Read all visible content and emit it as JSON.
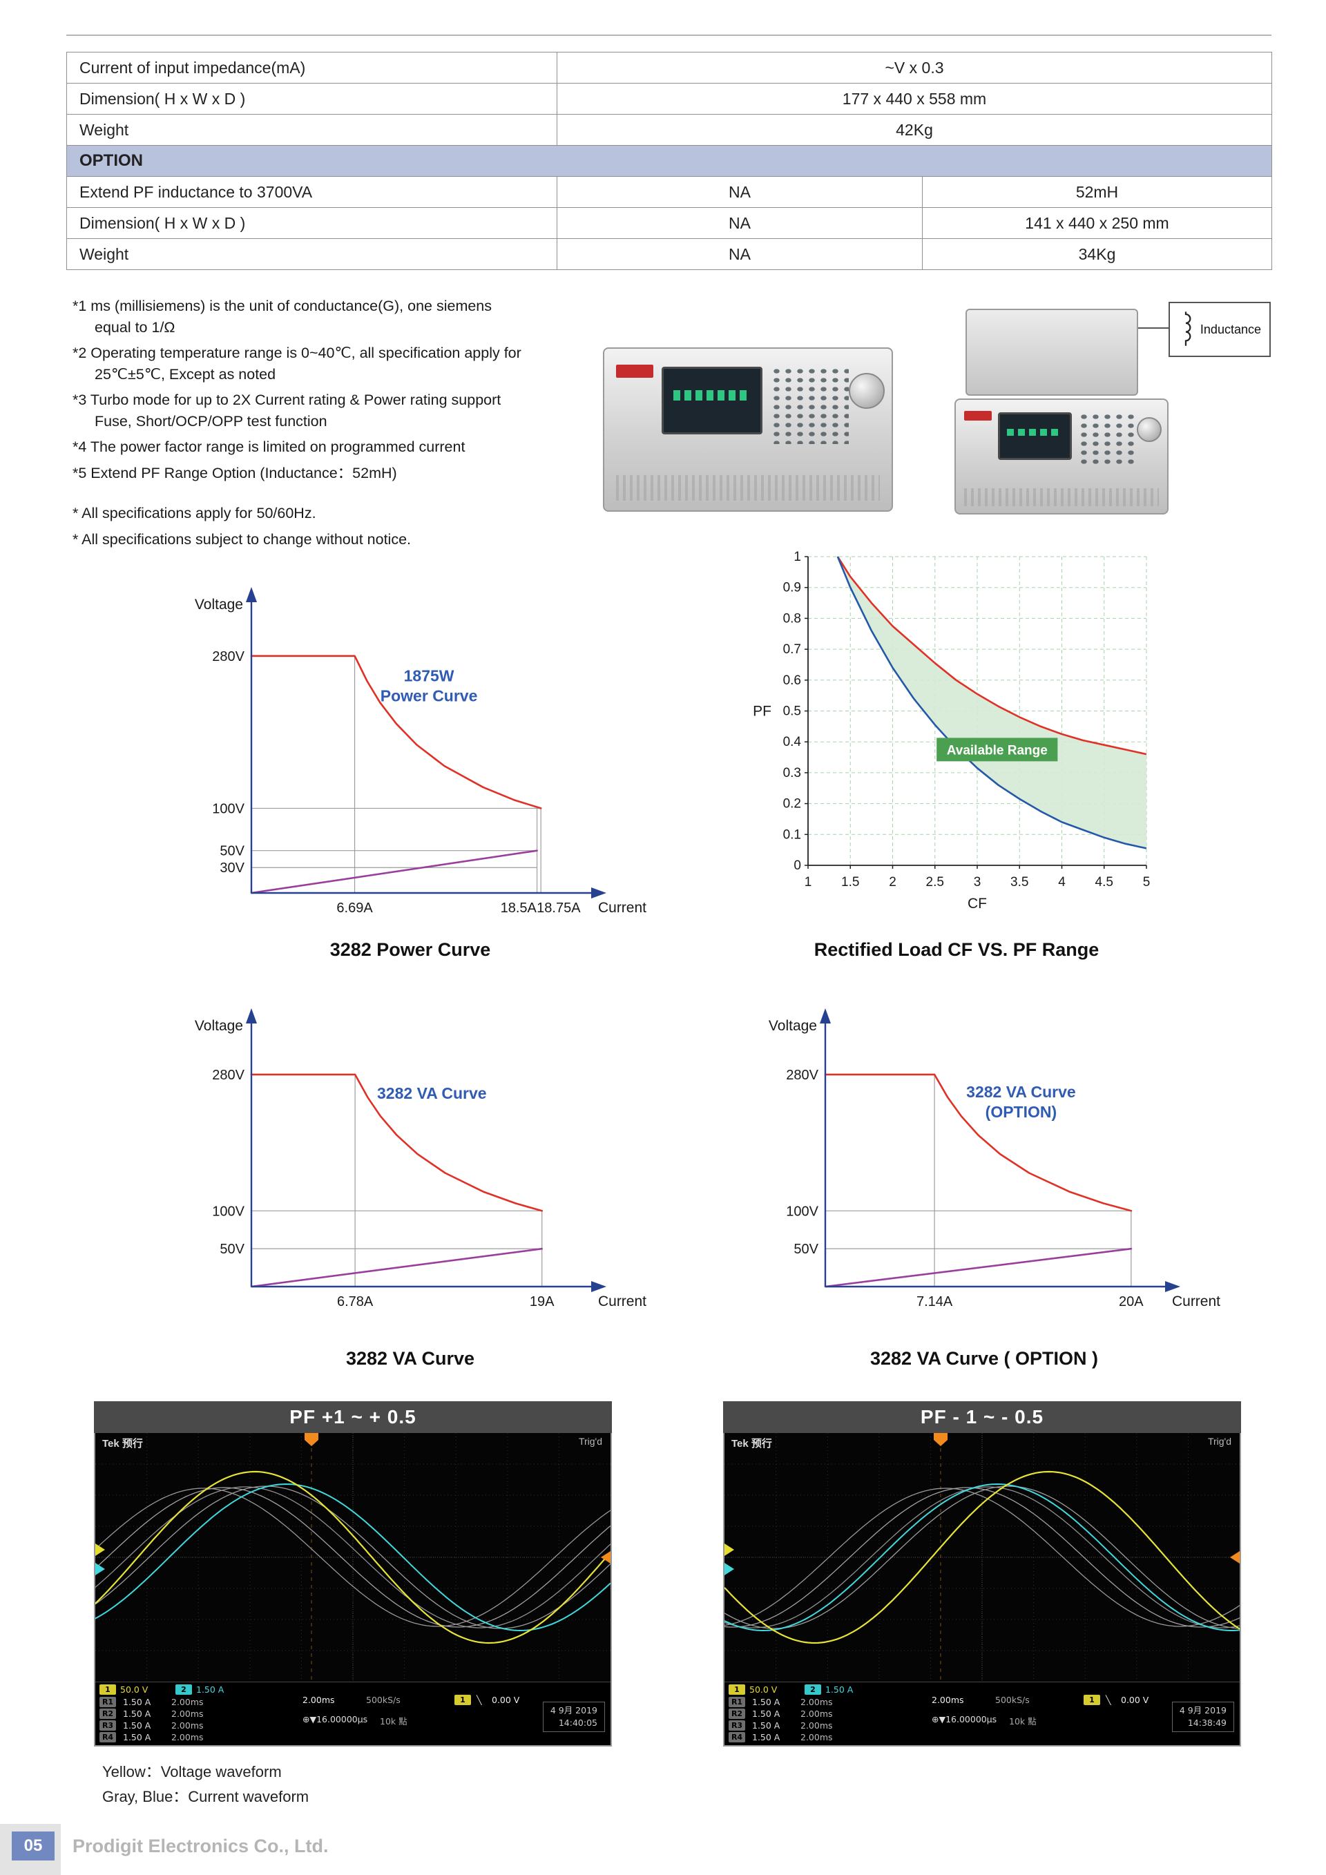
{
  "table": {
    "rows_main": [
      {
        "label": "Current of input impedance(mA)",
        "value": "~V x 0.3"
      },
      {
        "label": "Dimension( H x W x D )",
        "value": "177 x 440 x 558 mm"
      },
      {
        "label": "Weight",
        "value": "42Kg"
      }
    ],
    "section": "OPTION",
    "rows_option": [
      {
        "label": "Extend PF inductance to 3700VA",
        "c1": "NA",
        "c2": "52mH"
      },
      {
        "label": "Dimension( H x W x D )",
        "c1": "NA",
        "c2": "141 x 440 x 250 mm"
      },
      {
        "label": "Weight",
        "c1": "NA",
        "c2": "34Kg"
      }
    ]
  },
  "notes": [
    "*1 ms (millisiemens) is the unit of conductance(G), one siemens equal to 1/Ω",
    "*2 Operating temperature range is 0~40℃, all specification apply for 25℃±5℃, Except as noted",
    "*3 Turbo mode for up to 2X Current rating & Power rating support Fuse, Short/OCP/OPP test function",
    "*4 The power factor range is limited on programmed current",
    "*5 Extend PF Range Option (Inductance：52mH)"
  ],
  "notes_general": [
    "* All specifications apply for 50/60Hz.",
    "* All specifications subject to change without notice."
  ],
  "inductance_label": "Inductance",
  "chart_data": [
    {
      "id": "power",
      "kind": "va",
      "type": "line",
      "title": "3282 Power Curve",
      "xlabel": "Current",
      "ylabel": "Voltage",
      "annotation": [
        "1875W",
        "Power Curve"
      ],
      "ann_at": [
        11.5,
        250
      ],
      "xlim": [
        0,
        20.8
      ],
      "ylim": [
        0,
        310
      ],
      "y_ticks": [
        {
          "v": 280,
          "label": "280V"
        },
        {
          "v": 100,
          "label": "100V"
        },
        {
          "v": 50,
          "label": "50V"
        },
        {
          "v": 30,
          "label": "30V"
        }
      ],
      "x_ticks": [
        {
          "v": 6.69,
          "lx": 6.69,
          "label": "6.69A"
        },
        {
          "v": 18.5,
          "lx": 17.3,
          "label": "18.5A"
        },
        {
          "v": 18.75,
          "lx": 19.9,
          "label": "18.75A"
        }
      ],
      "h_lines": [
        {
          "y": 100,
          "x2": 18.75
        },
        {
          "y": 50,
          "x2": 18.5
        },
        {
          "y": 30,
          "x2": 18.5
        }
      ],
      "v_lines": [
        {
          "x": 6.69,
          "y2": 280
        },
        {
          "x": 18.5,
          "y2": 100
        },
        {
          "x": 18.75,
          "y2": 100
        }
      ],
      "series": [
        {
          "name": "power-limit-curve",
          "color": "#e03127",
          "points": [
            [
              0,
              280
            ],
            [
              6.69,
              280
            ],
            [
              7.5,
              250
            ],
            [
              8.33,
              225
            ],
            [
              9.38,
              200
            ],
            [
              10.71,
              175
            ],
            [
              12.5,
              150
            ],
            [
              15,
              125
            ],
            [
              17,
              110
            ],
            [
              18.75,
              100
            ]
          ]
        },
        {
          "name": "min-voltage-line",
          "color": "#9a3d9e",
          "points": [
            [
              0,
              0
            ],
            [
              18.5,
              50
            ]
          ]
        }
      ]
    },
    {
      "id": "cfpf",
      "kind": "cf",
      "type": "area",
      "title": "Rectified Load CF VS. PF Range",
      "xlabel": "CF",
      "ylabel": "PF",
      "xlim": [
        1,
        5
      ],
      "ylim": [
        0,
        1
      ],
      "x_ticks": [
        "1",
        "1.5",
        "2",
        "2.5",
        "3",
        "3.5",
        "4",
        "4.5",
        "5"
      ],
      "y_ticks": [
        "0",
        "0.1",
        "0.2",
        "0.3",
        "0.4",
        "0.5",
        "0.6",
        "0.7",
        "0.8",
        "0.9",
        "1"
      ],
      "badge": "Available Range",
      "badge_color": "#4aa050",
      "fill_color": "#d5e9d5",
      "series": [
        {
          "name": "pf-upper-limit",
          "color": "#e03127",
          "points": [
            [
              1.35,
              1
            ],
            [
              1.5,
              0.935
            ],
            [
              1.75,
              0.85
            ],
            [
              2,
              0.775
            ],
            [
              2.25,
              0.715
            ],
            [
              2.5,
              0.655
            ],
            [
              2.75,
              0.6
            ],
            [
              3,
              0.555
            ],
            [
              3.25,
              0.515
            ],
            [
              3.5,
              0.48
            ],
            [
              3.75,
              0.45
            ],
            [
              4,
              0.425
            ],
            [
              4.25,
              0.405
            ],
            [
              4.5,
              0.39
            ],
            [
              4.75,
              0.375
            ],
            [
              5,
              0.36
            ]
          ]
        },
        {
          "name": "pf-lower-limit",
          "color": "#2458a8",
          "points": [
            [
              1.35,
              1
            ],
            [
              1.5,
              0.9
            ],
            [
              1.75,
              0.76
            ],
            [
              2,
              0.64
            ],
            [
              2.25,
              0.54
            ],
            [
              2.5,
              0.455
            ],
            [
              2.75,
              0.38
            ],
            [
              3,
              0.315
            ],
            [
              3.25,
              0.26
            ],
            [
              3.5,
              0.215
            ],
            [
              3.75,
              0.175
            ],
            [
              4,
              0.14
            ],
            [
              4.25,
              0.115
            ],
            [
              4.5,
              0.09
            ],
            [
              4.75,
              0.07
            ],
            [
              5,
              0.055
            ]
          ]
        }
      ]
    },
    {
      "id": "va",
      "kind": "va",
      "type": "line",
      "title": "3282 VA Curve",
      "xlabel": "Current",
      "ylabel": "Voltage",
      "annotation": [
        "3282 VA Curve"
      ],
      "ann_at": [
        11.8,
        248
      ],
      "xlim": [
        0,
        21
      ],
      "ylim": [
        0,
        310
      ],
      "y_ticks": [
        {
          "v": 280,
          "label": "280V"
        },
        {
          "v": 100,
          "label": "100V"
        },
        {
          "v": 50,
          "label": "50V"
        }
      ],
      "x_ticks": [
        {
          "v": 6.78,
          "lx": 6.78,
          "label": "6.78A"
        },
        {
          "v": 19,
          "lx": 19,
          "label": "19A"
        }
      ],
      "h_lines": [
        {
          "y": 100,
          "x2": 19
        },
        {
          "y": 50,
          "x2": 19
        }
      ],
      "v_lines": [
        {
          "x": 6.78,
          "y2": 280
        },
        {
          "x": 19,
          "y2": 100
        }
      ],
      "series": [
        {
          "name": "va-limit-curve",
          "color": "#e03127",
          "points": [
            [
              0,
              280
            ],
            [
              6.78,
              280
            ],
            [
              7.6,
              250
            ],
            [
              8.44,
              225
            ],
            [
              9.5,
              200
            ],
            [
              10.86,
              175
            ],
            [
              12.67,
              150
            ],
            [
              15.2,
              125
            ],
            [
              17.27,
              110
            ],
            [
              19,
              100
            ]
          ]
        },
        {
          "name": "min-voltage-line",
          "color": "#9a3d9e",
          "points": [
            [
              0,
              0
            ],
            [
              19,
              50
            ]
          ]
        }
      ]
    },
    {
      "id": "vaopt",
      "kind": "va",
      "type": "line",
      "title": "3282 VA Curve ( OPTION )",
      "xlabel": "Current",
      "ylabel": "Voltage",
      "annotation": [
        "3282 VA Curve",
        "(OPTION)"
      ],
      "ann_at": [
        12.8,
        250
      ],
      "xlim": [
        0,
        21
      ],
      "ylim": [
        0,
        310
      ],
      "y_ticks": [
        {
          "v": 280,
          "label": "280V"
        },
        {
          "v": 100,
          "label": "100V"
        },
        {
          "v": 50,
          "label": "50V"
        }
      ],
      "x_ticks": [
        {
          "v": 7.14,
          "lx": 7.14,
          "label": "7.14A"
        },
        {
          "v": 20,
          "lx": 20,
          "label": "20A"
        }
      ],
      "h_lines": [
        {
          "y": 100,
          "x2": 20
        },
        {
          "y": 50,
          "x2": 20
        }
      ],
      "v_lines": [
        {
          "x": 7.14,
          "y2": 280
        },
        {
          "x": 20,
          "y2": 100
        }
      ],
      "series": [
        {
          "name": "va-option-limit-curve",
          "color": "#e03127",
          "points": [
            [
              0,
              280
            ],
            [
              7.14,
              280
            ],
            [
              8,
              250
            ],
            [
              8.89,
              225
            ],
            [
              10,
              200
            ],
            [
              11.43,
              175
            ],
            [
              13.33,
              150
            ],
            [
              16,
              125
            ],
            [
              18.18,
              110
            ],
            [
              20,
              100
            ]
          ]
        },
        {
          "name": "min-voltage-line",
          "color": "#9a3d9e",
          "points": [
            [
              0,
              0
            ],
            [
              20,
              50
            ]
          ]
        }
      ]
    }
  ],
  "scopes": [
    {
      "header": "PF +1 ~ + 0.5",
      "status_left": "Tek 预行",
      "status_right": "Trig'd",
      "ch1_label": "1",
      "ch1_value": "50.0 V",
      "ch2_label": "2",
      "ch2_value": "1.50 A",
      "refs": [
        {
          "name": "R1",
          "scale": "1.50 A",
          "time": "2.00ms"
        },
        {
          "name": "R2",
          "scale": "1.50 A",
          "time": "2.00ms"
        },
        {
          "name": "R3",
          "scale": "1.50 A",
          "time": "2.00ms"
        },
        {
          "name": "R4",
          "scale": "1.50 A",
          "time": "2.00ms"
        }
      ],
      "timebase": "2.00ms",
      "sample_rate": "500kS/s",
      "horiz_pos": "⊕▼16.00000µs",
      "record_len": "10k 點",
      "trig_ch": "1",
      "trig_slope": "╲",
      "trig_level": "0.00 V",
      "date": "4 9月 2019",
      "time": "14:40:05",
      "waves": {
        "cycles": 1.1,
        "series": [
          {
            "name": "ref-waveform-1",
            "color": "#989898",
            "amp": 100,
            "phase": 0.12,
            "width": 1.3
          },
          {
            "name": "ref-waveform-2",
            "color": "#a2a2a2",
            "amp": 101,
            "phase": -0.16,
            "width": 1.3
          },
          {
            "name": "ref-waveform-3",
            "color": "#909090",
            "amp": 102,
            "phase": -0.44,
            "width": 1.3
          },
          {
            "name": "ref-waveform-4",
            "color": "#9c9c9c",
            "amp": 103,
            "phase": -0.72,
            "width": 1.3
          },
          {
            "name": "current-waveform",
            "color": "#3fd9de",
            "amp": 106,
            "phase": -0.99,
            "width": 2
          },
          {
            "name": "voltage-waveform",
            "color": "#e8e337",
            "amp": 124,
            "phase": -0.57,
            "width": 2.2
          }
        ]
      }
    },
    {
      "header": "PF - 1 ~ - 0.5",
      "status_left": "Tek 预行",
      "status_right": "Trig'd",
      "ch1_label": "1",
      "ch1_value": "50.0 V",
      "ch2_label": "2",
      "ch2_value": "1.50 A",
      "refs": [
        {
          "name": "R1",
          "scale": "1.50 A",
          "time": "2.00ms"
        },
        {
          "name": "R2",
          "scale": "1.50 A",
          "time": "2.00ms"
        },
        {
          "name": "R3",
          "scale": "1.50 A",
          "time": "2.00ms"
        },
        {
          "name": "R4",
          "scale": "1.50 A",
          "time": "2.00ms"
        }
      ],
      "timebase": "2.00ms",
      "sample_rate": "500kS/s",
      "horiz_pos": "⊕▼16.00000µs",
      "record_len": "10k 點",
      "trig_ch": "1",
      "trig_slope": "╲",
      "trig_level": "0.00 V",
      "date": "4 9月 2019",
      "time": "14:38:49",
      "waves": {
        "cycles": 1.1,
        "series": [
          {
            "name": "ref-waveform-1",
            "color": "#989898",
            "amp": 100,
            "phase": -1.4,
            "width": 1.3
          },
          {
            "name": "ref-waveform-2",
            "color": "#a2a2a2",
            "amp": 101,
            "phase": -1.68,
            "width": 1.3
          },
          {
            "name": "ref-waveform-3",
            "color": "#909090",
            "amp": 102,
            "phase": -1.96,
            "width": 1.3
          },
          {
            "name": "ref-waveform-4",
            "color": "#9c9c9c",
            "amp": 103,
            "phase": -2.24,
            "width": 1.3
          },
          {
            "name": "current-waveform",
            "color": "#3fd9de",
            "amp": 106,
            "phase": -2.09,
            "width": 2
          },
          {
            "name": "voltage-waveform",
            "color": "#e8e337",
            "amp": 124,
            "phase": -2.78,
            "width": 2.2
          }
        ]
      }
    }
  ],
  "captions": [
    "Yellow：Voltage waveform",
    "Gray, Blue：Current waveform"
  ],
  "footer": {
    "page": "05",
    "company": "Prodigit Electronics Co., Ltd."
  }
}
